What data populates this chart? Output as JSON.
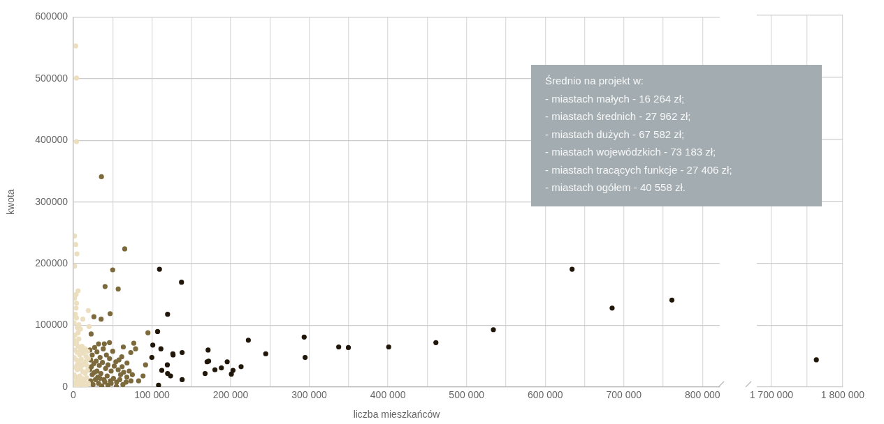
{
  "chart_data": [
    {
      "type": "scatter",
      "xlabel": "liczba mieszkańców",
      "ylabel": "kwota",
      "xlim": [
        0,
        822000
      ],
      "ylim": [
        0,
        600000
      ],
      "xticks": [
        0,
        {
          "value": 50000,
          "label": null
        },
        {
          "value": 100000,
          "label": "100 000"
        },
        {
          "value": 150000,
          "label": null
        },
        {
          "value": 200000,
          "label": "200 000"
        },
        {
          "value": 250000,
          "label": null
        },
        {
          "value": 300000,
          "label": "300 000"
        },
        {
          "value": 350000,
          "label": null
        },
        {
          "value": 400000,
          "label": "400 000"
        },
        {
          "value": 450000,
          "label": null
        },
        {
          "value": 500000,
          "label": "500 000"
        },
        {
          "value": 550000,
          "label": null
        },
        {
          "value": 600000,
          "label": "600 000"
        },
        {
          "value": 650000,
          "label": null
        },
        {
          "value": 700000,
          "label": "700 000"
        },
        {
          "value": 750000,
          "label": null
        },
        {
          "value": 800000,
          "label": "800 000"
        }
      ],
      "yticks": [
        0,
        100000,
        200000,
        300000,
        400000,
        500000,
        600000
      ],
      "grid": true,
      "marker": "circle",
      "annotations": [
        "Średnio na projekt w:",
        "- miastach małych - 16 264 zł;",
        "- miastach średnich -  27 962 zł;",
        "- miastach dużych -  67 582 zł;",
        "- miastach wojewódzkich -  73 183 zł;",
        "- miastach tracących funkcje -  27 406 zł;",
        "- miastach ogółem - 40 558 zł."
      ],
      "series": [
        {
          "color": "#ecdfc0",
          "x": [
            3000,
            4000,
            4000,
            1500,
            3000,
            4500,
            1500,
            6000,
            3500,
            1500,
            4000,
            3500,
            19000,
            12000,
            20000,
            1000,
            7000,
            4000,
            2500,
            5000,
            9000,
            2000,
            6000,
            1000,
            4000,
            7000,
            11000,
            15000,
            18000,
            2000,
            5000,
            8000,
            12000,
            16000,
            19000,
            1000,
            4000,
            7000,
            10000,
            13000,
            17000,
            2000,
            5000,
            9000,
            12000,
            15000,
            18000,
            1000,
            3000,
            6000,
            8000,
            11000,
            14000,
            17000,
            19000,
            2000,
            4000,
            7000,
            10000,
            13000,
            16000,
            500,
            9000,
            14000,
            6000,
            3000,
            11000,
            16000,
            5000,
            8000
          ],
          "values": [
            553000,
            501000,
            398000,
            245000,
            231000,
            216000,
            196000,
            156000,
            150000,
            144000,
            136000,
            128000,
            124000,
            110000,
            98000,
            104000,
            101000,
            112000,
            118000,
            96000,
            94000,
            84000,
            88000,
            76000,
            72000,
            78000,
            66000,
            62000,
            58000,
            60000,
            56000,
            52000,
            55000,
            50000,
            46000,
            48000,
            44000,
            40000,
            45000,
            38000,
            35000,
            32000,
            28000,
            30000,
            25000,
            22000,
            27000,
            20000,
            16000,
            12000,
            18000,
            14000,
            10000,
            15000,
            6000,
            8000,
            4000,
            2000,
            6000,
            3000,
            1000,
            1000,
            60000,
            58000,
            66000,
            70000,
            35000,
            42000,
            36000,
            9000
          ]
        },
        {
          "color": "#7c6a3c",
          "x": [
            65300,
            50000,
            40300,
            57000,
            35700,
            46700,
            26100,
            35300,
            22600,
            94800,
            32000,
            39400,
            45900,
            63500,
            76800,
            79100,
            73000,
            61500,
            54000,
            68200,
            91800,
            88600,
            83000,
            73200,
            54700,
            21000,
            24000,
            27000,
            30000,
            34000,
            38000,
            42000,
            22000,
            26000,
            29000,
            33000,
            37000,
            41000,
            44000,
            48000,
            52000,
            57000,
            60000,
            64000,
            68000,
            71000,
            75000,
            21000,
            24000,
            27000,
            31000,
            35000,
            39000,
            43000,
            47000,
            51000,
            55000,
            59000,
            63000,
            67000,
            22000,
            25000,
            28000,
            32000,
            36000,
            40000,
            44000,
            48000,
            58000,
            62000,
            50000,
            46000,
            23000,
            30000,
            34000
          ],
          "values": [
            224000,
            190000,
            163000,
            159000,
            341000,
            119000,
            114000,
            110000,
            86000,
            88000,
            70000,
            70000,
            72000,
            65000,
            71000,
            62000,
            56000,
            49000,
            41000,
            39000,
            36000,
            18000,
            10000,
            10000,
            1000,
            60000,
            52000,
            64000,
            57000,
            48000,
            62000,
            52000,
            44000,
            38000,
            42000,
            35000,
            40000,
            30000,
            36000,
            26000,
            34000,
            28000,
            20000,
            24000,
            16000,
            26000,
            20000,
            28000,
            20000,
            24000,
            16000,
            22000,
            12000,
            18000,
            10000,
            14000,
            8000,
            12000,
            4000,
            8000,
            10000,
            4000,
            12000,
            6000,
            2000,
            8000,
            3000,
            6000,
            44000,
            33000,
            58000,
            46000,
            33000,
            26000,
            14000
          ]
        },
        {
          "color": "#21160a",
          "x": [
            109500,
            137500,
            119800,
            107100,
            101000,
            111300,
            126800,
            126500,
            138300,
            99800,
            119500,
            112400,
            119800,
            123600,
            108300,
            138300,
            171300,
            170000,
            172000,
            167500,
            180000,
            188200,
            195600,
            203000,
            200900,
            213300,
            222500,
            244600,
            293500,
            294700,
            337400,
            349700,
            401000,
            461000,
            534100,
            634200,
            685100,
            761100
          ],
          "values": [
            191000,
            170000,
            118000,
            90000,
            68000,
            62000,
            52000,
            54000,
            56000,
            48000,
            36000,
            27000,
            22000,
            18000,
            3000,
            12000,
            60000,
            41000,
            42000,
            22000,
            28000,
            31000,
            41000,
            27000,
            21000,
            33000,
            76000,
            54000,
            81000,
            48000,
            65000,
            64000,
            65000,
            72000,
            93000,
            191000,
            128000,
            141000
          ]
        }
      ]
    },
    {
      "type": "scatter",
      "xlim": [
        1680000,
        1800000
      ],
      "ylim": [
        0,
        600000
      ],
      "tick_labels": "x",
      "grid": true,
      "marker": "circle",
      "xticks": [
        {
          "value": 1700000,
          "label": "1 700 000"
        },
        {
          "value": 1750000,
          "label": null
        },
        {
          "value": 1800000,
          "label": "1 800 000"
        }
      ],
      "yticks": [
        0,
        100000,
        200000,
        300000,
        400000,
        500000,
        600000
      ],
      "series": [
        {
          "color": "#21160a",
          "x": [
            1763000
          ],
          "values": [
            44000
          ]
        }
      ]
    }
  ]
}
